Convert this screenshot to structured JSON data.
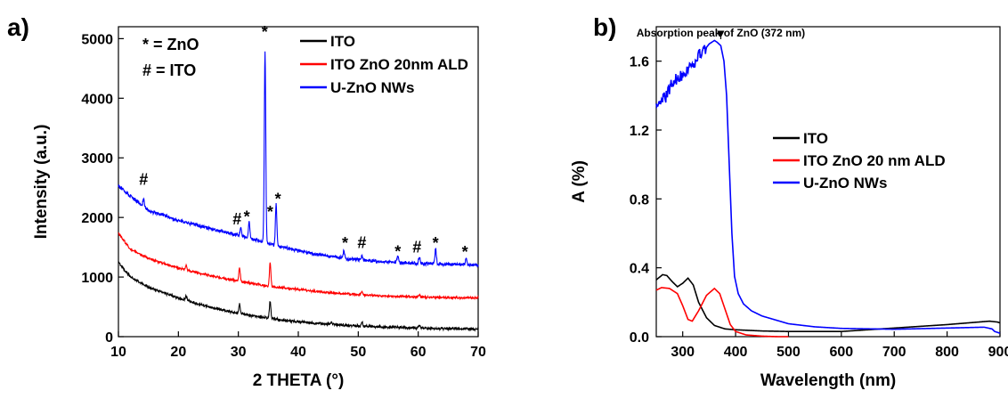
{
  "chart_data": [
    {
      "panel_label": "a)",
      "type": "line",
      "xlabel": "2 THETA (°)",
      "ylabel": "Intensity (a.u.)",
      "xlim": [
        10,
        70
      ],
      "ylim": [
        0,
        5200
      ],
      "xticks": [
        10,
        20,
        30,
        40,
        50,
        60,
        70
      ],
      "yticks": [
        0,
        1000,
        2000,
        3000,
        4000,
        5000
      ],
      "grid": false,
      "legend_position": "top-right",
      "key_text": [
        "* = ZnO",
        "# = ITO"
      ],
      "series": [
        {
          "name": "ITO",
          "color": "#000000",
          "baseline": [
            [
              10,
              1250
            ],
            [
              12,
              1000
            ],
            [
              15,
              830
            ],
            [
              20,
              650
            ],
            [
              25,
              500
            ],
            [
              30,
              390
            ],
            [
              35,
              310
            ],
            [
              40,
              250
            ],
            [
              45,
              210
            ],
            [
              50,
              180
            ],
            [
              55,
              160
            ],
            [
              60,
              145
            ],
            [
              65,
              135
            ],
            [
              70,
              130
            ]
          ],
          "peaks": [
            [
              21.3,
              80
            ],
            [
              30.2,
              170
            ],
            [
              35.3,
              290
            ],
            [
              45.5,
              40
            ],
            [
              50.6,
              70
            ],
            [
              60.2,
              50
            ]
          ],
          "noise": 35
        },
        {
          "name": "ITO ZnO 20nm ALD",
          "color": "#ff0000",
          "baseline": [
            [
              10,
              1730
            ],
            [
              12,
              1470
            ],
            [
              15,
              1310
            ],
            [
              20,
              1150
            ],
            [
              25,
              1030
            ],
            [
              30,
              930
            ],
            [
              35,
              850
            ],
            [
              40,
              790
            ],
            [
              45,
              740
            ],
            [
              50,
              705
            ],
            [
              55,
              680
            ],
            [
              60,
              665
            ],
            [
              65,
              655
            ],
            [
              70,
              650
            ]
          ],
          "peaks": [
            [
              21.3,
              80
            ],
            [
              30.2,
              230
            ],
            [
              35.3,
              390
            ],
            [
              50.6,
              60
            ],
            [
              60.2,
              40
            ]
          ],
          "noise": 30
        },
        {
          "name": "U-ZnO NWs",
          "color": "#0000ff",
          "baseline": [
            [
              10,
              2530
            ],
            [
              12,
              2350
            ],
            [
              15,
              2120
            ],
            [
              20,
              1950
            ],
            [
              25,
              1820
            ],
            [
              30,
              1700
            ],
            [
              33,
              1620
            ],
            [
              35,
              1560
            ],
            [
              40,
              1440
            ],
            [
              45,
              1350
            ],
            [
              50,
              1290
            ],
            [
              55,
              1250
            ],
            [
              60,
              1230
            ],
            [
              65,
              1215
            ],
            [
              70,
              1200
            ]
          ],
          "peaks": [
            [
              14.2,
              130
            ],
            [
              30.4,
              140
            ],
            [
              31.8,
              270
            ],
            [
              34.45,
              3220
            ],
            [
              36.3,
              700
            ],
            [
              47.6,
              120
            ],
            [
              50.6,
              90
            ],
            [
              56.6,
              110
            ],
            [
              60.2,
              120
            ],
            [
              62.9,
              250
            ],
            [
              68.0,
              100
            ]
          ],
          "noise": 45
        }
      ],
      "annotations": [
        {
          "text": "#",
          "x": 14.2,
          "y": 2550
        },
        {
          "text": "#",
          "x": 29.8,
          "y": 1880
        },
        {
          "text": "*",
          "x": 31.4,
          "y": 1920
        },
        {
          "text": "*",
          "x": 34.4,
          "y": 5020
        },
        {
          "text": "*",
          "x": 35.3,
          "y": 2000
        },
        {
          "text": "*",
          "x": 36.6,
          "y": 2220
        },
        {
          "text": "*",
          "x": 47.8,
          "y": 1480
        },
        {
          "text": "#",
          "x": 50.6,
          "y": 1490
        },
        {
          "text": "*",
          "x": 56.6,
          "y": 1340
        },
        {
          "text": "#",
          "x": 59.8,
          "y": 1410
        },
        {
          "text": "*",
          "x": 62.9,
          "y": 1480
        },
        {
          "text": "*",
          "x": 67.8,
          "y": 1330
        }
      ]
    },
    {
      "panel_label": "b)",
      "type": "line",
      "xlabel": "Wavelength (nm)",
      "ylabel": "A (%)",
      "xlim": [
        250,
        900
      ],
      "ylim": [
        0,
        1.8
      ],
      "xticks": [
        300,
        400,
        500,
        600,
        700,
        800,
        900
      ],
      "yticks": [
        0.0,
        0.4,
        0.8,
        1.2,
        1.6
      ],
      "grid": false,
      "legend_position": "center-right",
      "annotation": {
        "text": "Absorption peak of ZnO  (372 nm)",
        "x": 372,
        "y": 1.72
      },
      "series": [
        {
          "name": "ITO",
          "color": "#000000",
          "points": [
            [
              250,
              0.33
            ],
            [
              262,
              0.36
            ],
            [
              270,
              0.355
            ],
            [
              280,
              0.32
            ],
            [
              290,
              0.29
            ],
            [
              300,
              0.31
            ],
            [
              310,
              0.34
            ],
            [
              320,
              0.3
            ],
            [
              330,
              0.2
            ],
            [
              345,
              0.11
            ],
            [
              360,
              0.065
            ],
            [
              380,
              0.045
            ],
            [
              400,
              0.04
            ],
            [
              450,
              0.033
            ],
            [
              500,
              0.03
            ],
            [
              600,
              0.03
            ],
            [
              700,
              0.05
            ],
            [
              800,
              0.07
            ],
            [
              880,
              0.09
            ],
            [
              895,
              0.085
            ],
            [
              900,
              0.08
            ]
          ]
        },
        {
          "name": "ITO ZnO 20 nm ALD",
          "color": "#ff0000",
          "points": [
            [
              250,
              0.27
            ],
            [
              260,
              0.285
            ],
            [
              275,
              0.28
            ],
            [
              290,
              0.25
            ],
            [
              300,
              0.18
            ],
            [
              310,
              0.1
            ],
            [
              318,
              0.09
            ],
            [
              330,
              0.15
            ],
            [
              345,
              0.24
            ],
            [
              360,
              0.28
            ],
            [
              370,
              0.25
            ],
            [
              380,
              0.16
            ],
            [
              390,
              0.07
            ],
            [
              400,
              0.03
            ],
            [
              420,
              0.01
            ],
            [
              450,
              0.003
            ],
            [
              480,
              0.0
            ],
            [
              500,
              0.0
            ]
          ]
        },
        {
          "name": "U-ZnO NWs",
          "color": "#0000ff",
          "points": [
            [
              250,
              1.34
            ],
            [
              260,
              1.37
            ],
            [
              270,
              1.4
            ],
            [
              280,
              1.48
            ],
            [
              290,
              1.5
            ],
            [
              300,
              1.52
            ],
            [
              310,
              1.55
            ],
            [
              320,
              1.58
            ],
            [
              330,
              1.63
            ],
            [
              340,
              1.66
            ],
            [
              350,
              1.7
            ],
            [
              360,
              1.72
            ],
            [
              365,
              1.71
            ],
            [
              372,
              1.69
            ],
            [
              378,
              1.6
            ],
            [
              383,
              1.4
            ],
            [
              388,
              1.0
            ],
            [
              393,
              0.6
            ],
            [
              398,
              0.35
            ],
            [
              405,
              0.25
            ],
            [
              415,
              0.19
            ],
            [
              430,
              0.15
            ],
            [
              450,
              0.12
            ],
            [
              500,
              0.075
            ],
            [
              550,
              0.057
            ],
            [
              600,
              0.048
            ],
            [
              700,
              0.043
            ],
            [
              800,
              0.05
            ],
            [
              870,
              0.055
            ],
            [
              885,
              0.045
            ],
            [
              890,
              0.03
            ],
            [
              900,
              0.02
            ]
          ],
          "noise_until": 345
        }
      ]
    }
  ]
}
